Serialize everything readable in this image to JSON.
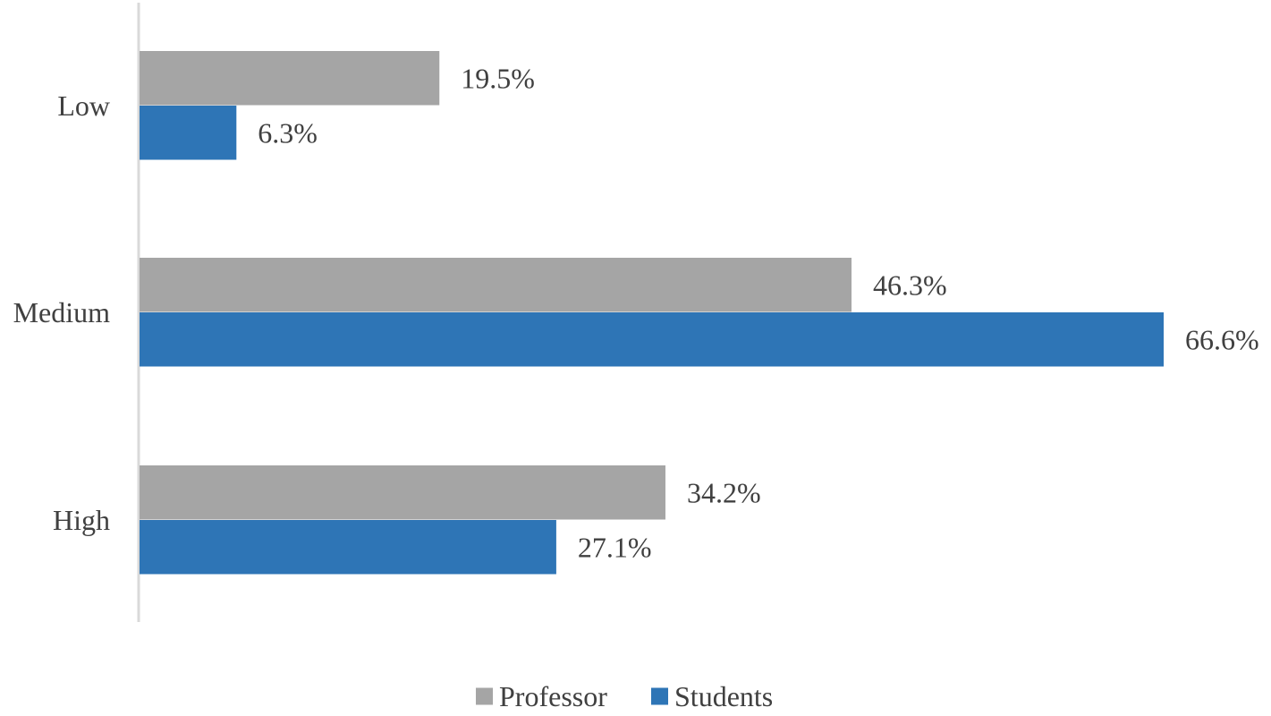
{
  "chart_data": {
    "type": "bar",
    "orientation": "horizontal",
    "categories": [
      "Low",
      "Medium",
      "High"
    ],
    "series": [
      {
        "name": "Professor",
        "values": [
          19.5,
          46.3,
          34.2
        ],
        "labels": [
          "19.5%",
          "46.3%",
          "34.2%"
        ],
        "color": "#a5a5a5"
      },
      {
        "name": "Students",
        "values": [
          6.3,
          66.6,
          27.1
        ],
        "labels": [
          "6.3%",
          "66.6%",
          "27.1%"
        ],
        "color": "#2e75b6"
      }
    ],
    "value_unit": "%",
    "xlim": [
      0,
      66.6
    ],
    "title": "",
    "xlabel": "",
    "ylabel": "",
    "grid": false,
    "legend": "bottom-center",
    "axis_color": "#d9d9d9",
    "text_color": "#404040"
  }
}
